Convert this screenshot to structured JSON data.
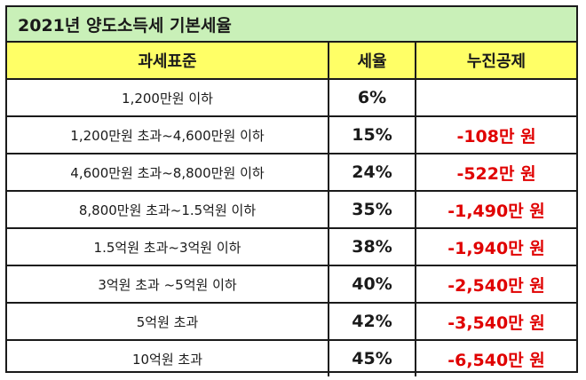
{
  "title": "2021년 양도소득세 기본세율",
  "headers": {
    "base": "과세표준",
    "rate": "세율",
    "deduction": "누진공제"
  },
  "rows": [
    {
      "base": "1,200만원 이하",
      "rate": "6%",
      "deduction": ""
    },
    {
      "base": "1,200만원 초과~4,600만원 이하",
      "rate": "15%",
      "deduction": "-108만 원"
    },
    {
      "base": "4,600만원 초과~8,800만원 이하",
      "rate": "24%",
      "deduction": "-522만 원"
    },
    {
      "base": "8,800만원 초과~1.5억원 이하",
      "rate": "35%",
      "deduction": "-1,490만 원"
    },
    {
      "base": "1.5억원 초과~3억원 이하",
      "rate": "38%",
      "deduction": "-1,940만 원"
    },
    {
      "base": "3억원 초과 ~5억원 이하",
      "rate": "40%",
      "deduction": "-2,540만 원"
    },
    {
      "base": "5억원 초과",
      "rate": "42%",
      "deduction": "-3,540만 원"
    },
    {
      "base": "10억원 초과",
      "rate": "45%",
      "deduction": "-6,540만 원"
    }
  ],
  "colors": {
    "title_bg": "#c9f0b8",
    "header_bg": "#ffff66",
    "deduction_text": "#e00000",
    "border": "#1a1a1a"
  }
}
